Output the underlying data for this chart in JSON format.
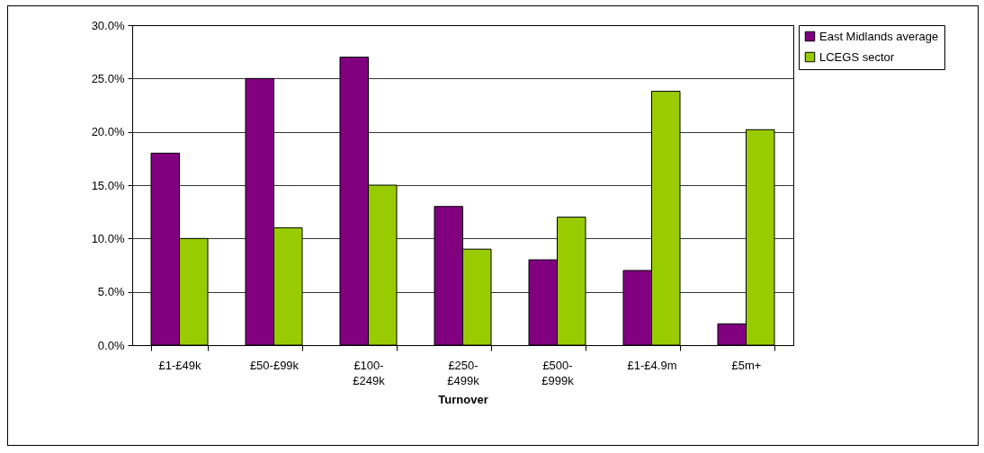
{
  "chart_data": {
    "type": "bar",
    "xlabel": "Turnover",
    "categories": [
      "£1-£49k",
      "£50-£99k",
      "£100-£249k",
      "£250-£499k",
      "£500-£999k",
      "£1-£4.9m",
      "£5m+"
    ],
    "series": [
      {
        "name": "East Midlands average",
        "color": "#800080",
        "values": [
          18,
          25,
          27,
          13,
          8,
          7,
          2
        ]
      },
      {
        "name": "LCEGS sector",
        "color": "#99cc00",
        "values": [
          10,
          11,
          15,
          9,
          12,
          23.8,
          20.2
        ]
      }
    ],
    "ylim": [
      0,
      30
    ],
    "yticks": [
      {
        "value": 0,
        "label": "0.0%"
      },
      {
        "value": 5,
        "label": "5.0%"
      },
      {
        "value": 10,
        "label": "10.0%"
      },
      {
        "value": 15,
        "label": "15.0%"
      },
      {
        "value": 20,
        "label": "20.0%"
      },
      {
        "value": 25,
        "label": "25.0%"
      },
      {
        "value": 30,
        "label": "30.0%"
      }
    ],
    "grid": "y",
    "legend": "right"
  }
}
